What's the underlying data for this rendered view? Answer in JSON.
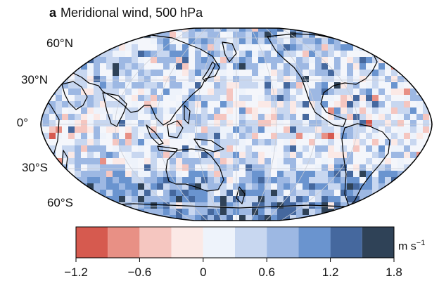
{
  "panel": {
    "letter": "a",
    "title": "Meridional wind, 500 hPa"
  },
  "map": {
    "projection": "robinson",
    "central_longitude": 150,
    "latitude_labels": [
      "60°N",
      "30°N",
      "0°",
      "30°S",
      "60°S"
    ],
    "gridlines": true
  },
  "colorbar": {
    "units_main": "m s",
    "units_exp": "−1",
    "tick_labels": [
      "−1.2",
      "−0.6",
      "0",
      "0.6",
      "1.2",
      "1.8"
    ],
    "range": [
      -1.2,
      1.8
    ],
    "bins": [
      {
        "from": -1.2,
        "to": -0.9,
        "color": "#d65a4f"
      },
      {
        "from": -0.9,
        "to": -0.6,
        "color": "#e89085"
      },
      {
        "from": -0.6,
        "to": -0.3,
        "color": "#f5c6c0"
      },
      {
        "from": -0.3,
        "to": 0.0,
        "color": "#fbe9e6"
      },
      {
        "from": 0.0,
        "to": 0.3,
        "color": "#eef3fb"
      },
      {
        "from": 0.3,
        "to": 0.6,
        "color": "#c8d7f0"
      },
      {
        "from": 0.6,
        "to": 0.9,
        "color": "#9db8e3"
      },
      {
        "from": 0.9,
        "to": 1.2,
        "color": "#6a94cf"
      },
      {
        "from": 1.2,
        "to": 1.5,
        "color": "#45689e"
      },
      {
        "from": 1.5,
        "to": 1.8,
        "color": "#2f4257"
      }
    ]
  }
}
